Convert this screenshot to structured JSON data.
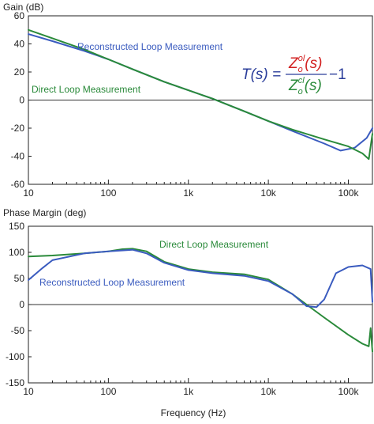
{
  "chart_data": [
    {
      "type": "line",
      "ylabel": "Gain (dB)",
      "xscale": "log",
      "xlim": [
        10,
        200000
      ],
      "ylim": [
        -60,
        60
      ],
      "xticks": [
        10,
        100,
        1000,
        10000,
        100000
      ],
      "xticklabels": [
        "10",
        "100",
        "1k",
        "10k",
        "100k"
      ],
      "yticks": [
        -60,
        -40,
        -20,
        0,
        20,
        40,
        60
      ],
      "yticklabels": [
        "-60",
        "-40",
        "-20",
        "0",
        "20",
        "40",
        "60"
      ],
      "grid": "none",
      "series": [
        {
          "name": "Reconstructed Loop Measurement",
          "color": "#3a5bbf",
          "x": [
            10,
            20,
            50,
            100,
            200,
            500,
            1000,
            2000,
            5000,
            10000,
            20000,
            50000,
            80000,
            120000,
            170000,
            200000
          ],
          "y": [
            47,
            42,
            35,
            29,
            22,
            13,
            7,
            1,
            -8,
            -15,
            -22,
            -31,
            -36,
            -34,
            -27,
            -20
          ]
        },
        {
          "name": "Direct Loop Measurement",
          "color": "#2a8a3a",
          "x": [
            10,
            20,
            50,
            100,
            200,
            500,
            1000,
            2000,
            5000,
            10000,
            20000,
            50000,
            100000,
            150000,
            180000,
            200000
          ],
          "y": [
            50,
            44,
            36,
            29,
            22,
            13,
            7,
            1,
            -8,
            -15,
            -21,
            -28,
            -33,
            -38,
            -42,
            -24
          ]
        }
      ],
      "annotations": [
        {
          "text": "Reconstructed Loop Measurement",
          "color": "#3a5bbf"
        },
        {
          "text": "Direct Loop Measurement",
          "color": "#2a8a3a"
        }
      ],
      "formula": {
        "lhs": "T(s) =",
        "num_base": "Z",
        "num_sub": "o",
        "num_sup": "ol",
        "num_arg": "(s)",
        "den_base": "Z",
        "den_sub": "o",
        "den_sup": "cl",
        "den_arg": "(s)",
        "tail": "−1",
        "num_color": "#d22020",
        "den_color": "#2a8a3a",
        "text_color": "#2a3d9a"
      }
    },
    {
      "type": "line",
      "xlabel": "Frequency (Hz)",
      "ylabel": "Phase Margin (deg)",
      "xscale": "log",
      "xlim": [
        10,
        200000
      ],
      "ylim": [
        -150,
        150
      ],
      "xticks": [
        10,
        100,
        1000,
        10000,
        100000
      ],
      "xticklabels": [
        "10",
        "100",
        "1k",
        "10k",
        "100k"
      ],
      "yticks": [
        -150,
        -100,
        -50,
        0,
        50,
        100,
        150
      ],
      "yticklabels": [
        "-150",
        "-100",
        "-50",
        "0",
        "50",
        "100",
        "150"
      ],
      "grid": "none",
      "series": [
        {
          "name": "Direct Loop Measurement",
          "color": "#2a8a3a",
          "x": [
            10,
            20,
            50,
            100,
            150,
            200,
            300,
            500,
            1000,
            2000,
            5000,
            10000,
            20000,
            30000,
            50000,
            100000,
            150000,
            180000,
            190000,
            200000
          ],
          "y": [
            92,
            94,
            98,
            102,
            106,
            107,
            102,
            82,
            68,
            62,
            58,
            48,
            20,
            0,
            -25,
            -58,
            -75,
            -80,
            -45,
            -90
          ]
        },
        {
          "name": "Reconstructed Loop Measurement",
          "color": "#3a5bbf",
          "x": [
            10,
            15,
            20,
            50,
            100,
            200,
            300,
            500,
            1000,
            2000,
            5000,
            10000,
            20000,
            30000,
            40000,
            50000,
            70000,
            100000,
            150000,
            190000,
            200000
          ],
          "y": [
            47,
            70,
            85,
            98,
            102,
            105,
            98,
            80,
            66,
            60,
            55,
            45,
            20,
            -3,
            -5,
            10,
            60,
            72,
            75,
            68,
            5
          ]
        }
      ],
      "annotations": [
        {
          "text": "Direct Loop Measurement",
          "color": "#2a8a3a"
        },
        {
          "text": "Reconstructed Loop Measurement",
          "color": "#3a5bbf"
        }
      ]
    }
  ]
}
